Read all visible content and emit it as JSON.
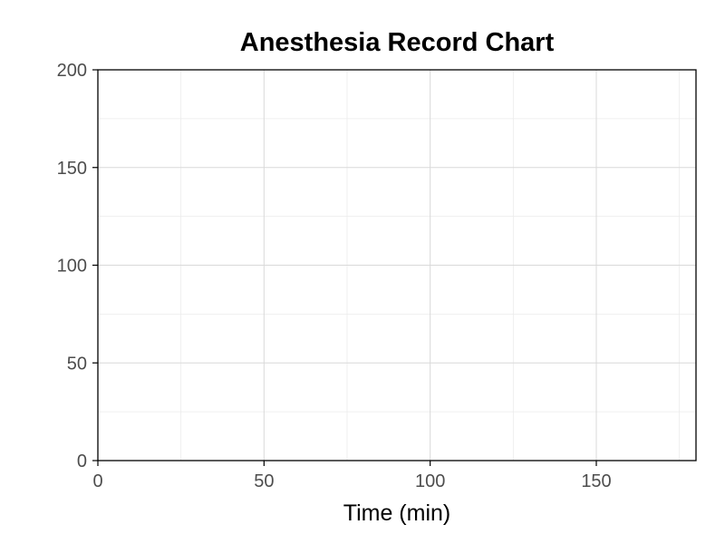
{
  "chart_data": {
    "type": "line",
    "title": "Anesthesia Record Chart",
    "xlabel": "Time (min)",
    "ylabel": "",
    "xlim": [
      0,
      180
    ],
    "ylim": [
      0,
      200
    ],
    "x_ticks": [
      0,
      50,
      100,
      150
    ],
    "y_ticks": [
      0,
      50,
      100,
      150,
      200
    ],
    "x_minor_gridlines": [
      25,
      75,
      125,
      175
    ],
    "y_minor_gridlines": [
      25,
      75,
      125,
      175
    ],
    "grid": true,
    "series": [],
    "colors": {
      "background": "#ffffff",
      "grid_major": "#d9d9d9",
      "grid_minor": "#ebebeb",
      "axis": "#000000",
      "tick_label": "#4d4d4d"
    }
  }
}
